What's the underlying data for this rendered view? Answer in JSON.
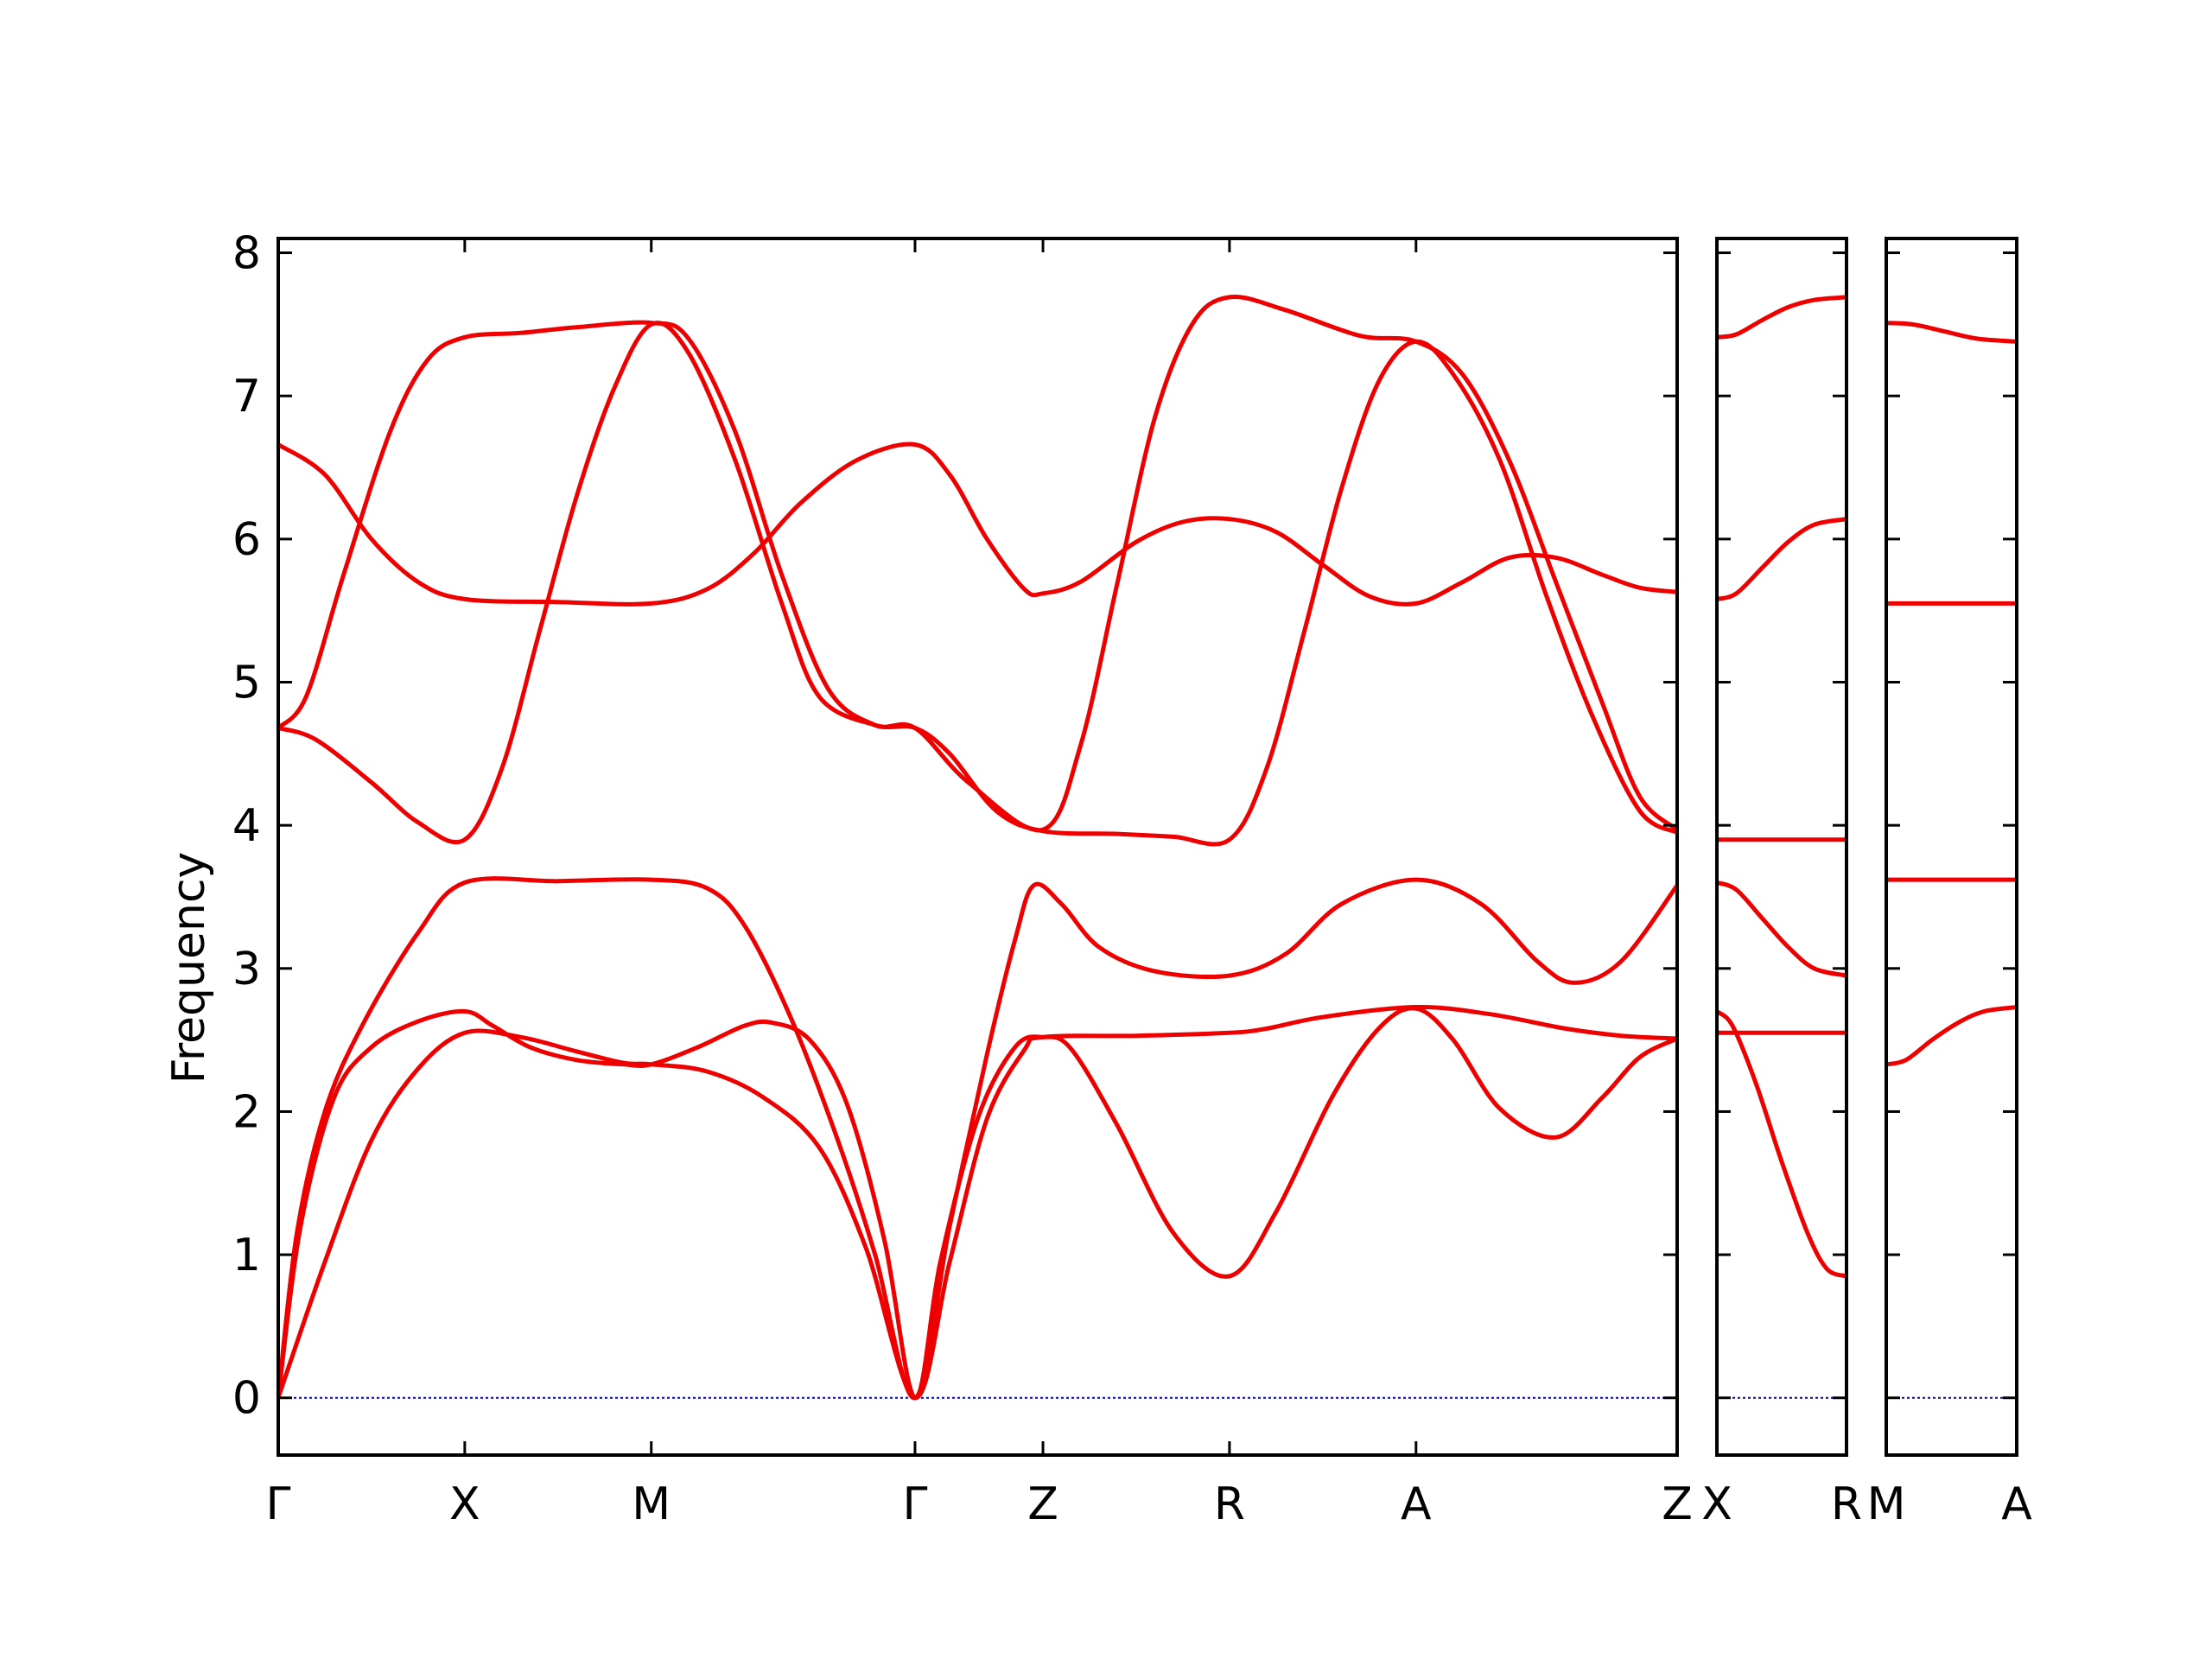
{
  "chart_data": {
    "type": "line",
    "ylabel": "Frequency",
    "ylim": [
      -0.4,
      8.1
    ],
    "yticks": [
      0,
      1,
      2,
      3,
      4,
      5,
      6,
      7,
      8
    ],
    "grid": false,
    "line_color": "#ee0000",
    "zero_line_color": "#0000cc",
    "panels": [
      {
        "name": "main",
        "x_range": [
          0,
          7.5
        ],
        "xticks": [
          {
            "x": 0,
            "label": "Γ"
          },
          {
            "x": 1,
            "label": "X"
          },
          {
            "x": 2,
            "label": "M"
          },
          {
            "x": 3.414,
            "label": "Γ"
          },
          {
            "x": 4.1,
            "label": "Z"
          },
          {
            "x": 5.1,
            "label": "R"
          },
          {
            "x": 6.1,
            "label": "A"
          },
          {
            "x": 7.5,
            "label": "Z"
          }
        ],
        "bands": [
          {
            "points": [
              [
                0,
                0
              ],
              [
                0.12,
                1.2
              ],
              [
                0.3,
                2.1
              ],
              [
                0.5,
                2.45
              ],
              [
                0.75,
                2.63
              ],
              [
                1,
                2.7
              ],
              [
                1.15,
                2.6
              ],
              [
                1.35,
                2.45
              ],
              [
                1.6,
                2.36
              ],
              [
                1.85,
                2.33
              ],
              [
                2,
                2.33
              ],
              [
                2.25,
                2.45
              ],
              [
                2.5,
                2.6
              ],
              [
                2.65,
                2.62
              ],
              [
                2.85,
                2.5
              ],
              [
                3.05,
                2.05
              ],
              [
                3.25,
                1.1
              ],
              [
                3.414,
                0
              ],
              [
                3.55,
                0.95
              ],
              [
                3.75,
                1.95
              ],
              [
                3.95,
                2.45
              ],
              [
                4.1,
                2.52
              ],
              [
                4.25,
                2.44
              ],
              [
                4.5,
                1.9
              ],
              [
                4.8,
                1.15
              ],
              [
                5.1,
                0.85
              ],
              [
                5.35,
                1.3
              ],
              [
                5.65,
                2.1
              ],
              [
                5.9,
                2.58
              ],
              [
                6.1,
                2.72
              ],
              [
                6.3,
                2.5
              ],
              [
                6.55,
                2.02
              ],
              [
                6.85,
                1.82
              ],
              [
                7.1,
                2.1
              ],
              [
                7.3,
                2.38
              ],
              [
                7.5,
                2.51
              ]
            ]
          },
          {
            "points": [
              [
                0,
                0
              ],
              [
                0.25,
                0.95
              ],
              [
                0.5,
                1.8
              ],
              [
                0.75,
                2.3
              ],
              [
                1,
                2.55
              ],
              [
                1.3,
                2.52
              ],
              [
                1.6,
                2.42
              ],
              [
                1.85,
                2.34
              ],
              [
                2,
                2.33
              ],
              [
                2.3,
                2.28
              ],
              [
                2.6,
                2.1
              ],
              [
                2.9,
                1.75
              ],
              [
                3.15,
                1.05
              ],
              [
                3.414,
                0
              ],
              [
                3.6,
                0.95
              ],
              [
                3.8,
                1.95
              ],
              [
                4,
                2.43
              ],
              [
                4.1,
                2.52
              ],
              [
                4.6,
                2.53
              ],
              [
                5.1,
                2.55
              ],
              [
                5.3,
                2.58
              ],
              [
                5.6,
                2.66
              ],
              [
                6.1,
                2.73
              ],
              [
                6.5,
                2.68
              ],
              [
                6.9,
                2.58
              ],
              [
                7.2,
                2.53
              ],
              [
                7.5,
                2.51
              ]
            ]
          },
          {
            "points": [
              [
                0,
                0
              ],
              [
                0.1,
                1.15
              ],
              [
                0.25,
                2.0
              ],
              [
                0.45,
                2.6
              ],
              [
                0.75,
                3.25
              ],
              [
                1,
                3.6
              ],
              [
                1.5,
                3.61
              ],
              [
                2,
                3.62
              ],
              [
                2.3,
                3.56
              ],
              [
                2.5,
                3.3
              ],
              [
                2.75,
                2.65
              ],
              [
                3.0,
                1.8
              ],
              [
                3.2,
                1.0
              ],
              [
                3.414,
                0
              ],
              [
                3.6,
                1.2
              ],
              [
                3.8,
                2.4
              ],
              [
                3.95,
                3.2
              ],
              [
                4.05,
                3.58
              ],
              [
                4.2,
                3.45
              ],
              [
                4.4,
                3.15
              ],
              [
                4.7,
                2.98
              ],
              [
                5.1,
                2.95
              ],
              [
                5.4,
                3.1
              ],
              [
                5.7,
                3.45
              ],
              [
                6.1,
                3.62
              ],
              [
                6.45,
                3.45
              ],
              [
                6.75,
                3.05
              ],
              [
                6.95,
                2.9
              ],
              [
                7.2,
                3.05
              ],
              [
                7.5,
                3.58
              ]
            ]
          },
          {
            "points": [
              [
                0,
                4.68
              ],
              [
                0.2,
                4.6
              ],
              [
                0.5,
                4.3
              ],
              [
                0.75,
                4.02
              ],
              [
                1,
                3.9
              ],
              [
                1.2,
                4.4
              ],
              [
                1.4,
                5.35
              ],
              [
                1.6,
                6.3
              ],
              [
                1.8,
                7.05
              ],
              [
                2,
                7.5
              ],
              [
                2.2,
                7.3
              ],
              [
                2.45,
                6.55
              ],
              [
                2.7,
                5.55
              ],
              [
                2.9,
                4.9
              ],
              [
                3.2,
                4.7
              ],
              [
                3.414,
                4.68
              ],
              [
                3.6,
                4.5
              ],
              [
                3.85,
                4.1
              ],
              [
                4.1,
                3.96
              ],
              [
                4.5,
                3.94
              ],
              [
                4.8,
                3.92
              ],
              [
                5.1,
                3.9
              ],
              [
                5.3,
                4.4
              ],
              [
                5.5,
                5.35
              ],
              [
                5.7,
                6.35
              ],
              [
                5.9,
                7.1
              ],
              [
                6.1,
                7.38
              ],
              [
                6.3,
                7.15
              ],
              [
                6.55,
                6.55
              ],
              [
                6.8,
                5.6
              ],
              [
                7.05,
                4.75
              ],
              [
                7.3,
                4.1
              ],
              [
                7.5,
                3.95
              ]
            ]
          },
          {
            "points": [
              [
                0,
                4.68
              ],
              [
                0.15,
                4.9
              ],
              [
                0.35,
                5.75
              ],
              [
                0.6,
                6.75
              ],
              [
                0.8,
                7.25
              ],
              [
                1,
                7.41
              ],
              [
                1.3,
                7.44
              ],
              [
                1.6,
                7.48
              ],
              [
                2,
                7.51
              ],
              [
                2.2,
                7.4
              ],
              [
                2.45,
                6.75
              ],
              [
                2.7,
                5.75
              ],
              [
                2.95,
                4.95
              ],
              [
                3.2,
                4.7
              ],
              [
                3.414,
                4.68
              ],
              [
                3.7,
                4.3
              ],
              [
                4.1,
                3.97
              ],
              [
                4.3,
                4.55
              ],
              [
                4.5,
                5.7
              ],
              [
                4.7,
                6.85
              ],
              [
                4.9,
                7.5
              ],
              [
                5.1,
                7.69
              ],
              [
                5.4,
                7.6
              ],
              [
                5.8,
                7.42
              ],
              [
                6.1,
                7.38
              ],
              [
                6.35,
                7.15
              ],
              [
                6.6,
                6.55
              ],
              [
                6.85,
                5.7
              ],
              [
                7.1,
                4.85
              ],
              [
                7.3,
                4.2
              ],
              [
                7.5,
                3.97
              ]
            ]
          },
          {
            "points": [
              [
                0,
                6.66
              ],
              [
                0.25,
                6.45
              ],
              [
                0.5,
                6.0
              ],
              [
                0.75,
                5.7
              ],
              [
                1,
                5.58
              ],
              [
                1.5,
                5.56
              ],
              [
                2,
                5.55
              ],
              [
                2.3,
                5.65
              ],
              [
                2.55,
                5.9
              ],
              [
                2.8,
                6.25
              ],
              [
                3.1,
                6.55
              ],
              [
                3.414,
                6.66
              ],
              [
                3.6,
                6.45
              ],
              [
                3.8,
                6.0
              ],
              [
                4,
                5.65
              ],
              [
                4.1,
                5.62
              ],
              [
                4.3,
                5.7
              ],
              [
                4.6,
                5.98
              ],
              [
                4.85,
                6.12
              ],
              [
                5.1,
                6.14
              ],
              [
                5.35,
                6.05
              ],
              [
                5.6,
                5.82
              ],
              [
                5.85,
                5.6
              ],
              [
                6.1,
                5.55
              ],
              [
                6.35,
                5.7
              ],
              [
                6.6,
                5.87
              ],
              [
                6.85,
                5.87
              ],
              [
                7.1,
                5.75
              ],
              [
                7.3,
                5.66
              ],
              [
                7.5,
                5.63
              ]
            ]
          }
        ]
      },
      {
        "name": "XR",
        "x_range": [
          0,
          1
        ],
        "xticks": [
          {
            "x": 0,
            "label": "X"
          },
          {
            "x": 1,
            "label": "R"
          }
        ],
        "bands": [
          {
            "points": [
              [
                0,
                2.55
              ],
              [
                1,
                2.55
              ]
            ]
          },
          {
            "points": [
              [
                0,
                2.7
              ],
              [
                0.12,
                2.6
              ],
              [
                0.3,
                2.2
              ],
              [
                0.5,
                1.65
              ],
              [
                0.7,
                1.15
              ],
              [
                0.85,
                0.9
              ],
              [
                1,
                0.85
              ]
            ]
          },
          {
            "points": [
              [
                0,
                3.6
              ],
              [
                0.15,
                3.55
              ],
              [
                0.35,
                3.35
              ],
              [
                0.55,
                3.15
              ],
              [
                0.75,
                3.0
              ],
              [
                1,
                2.95
              ]
            ]
          },
          {
            "points": [
              [
                0,
                3.9
              ],
              [
                1,
                3.9
              ]
            ]
          },
          {
            "points": [
              [
                0,
                5.58
              ],
              [
                0.15,
                5.62
              ],
              [
                0.35,
                5.8
              ],
              [
                0.55,
                5.98
              ],
              [
                0.75,
                6.1
              ],
              [
                1,
                6.14
              ]
            ]
          },
          {
            "points": [
              [
                0,
                7.41
              ],
              [
                0.15,
                7.43
              ],
              [
                0.35,
                7.53
              ],
              [
                0.55,
                7.62
              ],
              [
                0.75,
                7.67
              ],
              [
                1,
                7.69
              ]
            ]
          }
        ]
      },
      {
        "name": "MA",
        "x_range": [
          0,
          1
        ],
        "xticks": [
          {
            "x": 0,
            "label": "M"
          },
          {
            "x": 1,
            "label": "A"
          }
        ],
        "bands": [
          {
            "points": [
              [
                0,
                2.33
              ],
              [
                0.15,
                2.36
              ],
              [
                0.35,
                2.5
              ],
              [
                0.55,
                2.62
              ],
              [
                0.75,
                2.7
              ],
              [
                1,
                2.73
              ]
            ]
          },
          {
            "points": [
              [
                0,
                3.62
              ],
              [
                1,
                3.62
              ]
            ]
          },
          {
            "points": [
              [
                0,
                5.55
              ],
              [
                1,
                5.55
              ]
            ]
          },
          {
            "points": [
              [
                0,
                7.51
              ],
              [
                0.2,
                7.5
              ],
              [
                0.45,
                7.45
              ],
              [
                0.7,
                7.4
              ],
              [
                1,
                7.38
              ]
            ]
          }
        ]
      }
    ]
  }
}
